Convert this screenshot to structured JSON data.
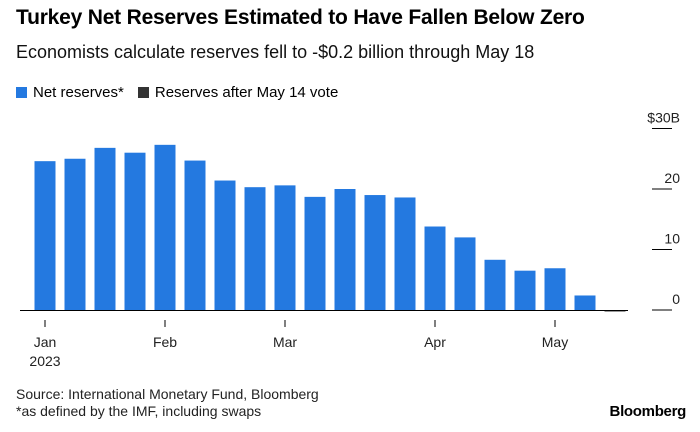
{
  "header": {
    "title": "Turkey Net Reserves Estimated to Have Fallen Below Zero",
    "subtitle": "Economists calculate reserves fell to -$0.2 billion through May 18"
  },
  "legend": {
    "items": [
      {
        "label": "Net reserves*",
        "color": "#2479e0"
      },
      {
        "label": "Reserves after May 14 vote",
        "color": "#333333"
      }
    ]
  },
  "chart_data": {
    "type": "bar",
    "title": "Turkey Net Reserves Estimated to Have Fallen Below Zero",
    "subtitle": "Economists calculate reserves fell to -$0.2 billion through May 18",
    "xlabel": "",
    "ylabel": "",
    "ylim": [
      -1,
      30
    ],
    "y_ticks": [
      {
        "value": 30,
        "label": "$30B"
      },
      {
        "value": 20,
        "label": "20"
      },
      {
        "value": 10,
        "label": "10"
      },
      {
        "value": 0,
        "label": "0"
      }
    ],
    "x_ticks": [
      {
        "index": 0,
        "label": "Jan",
        "sublabel": "2023"
      },
      {
        "index": 4,
        "label": "Feb",
        "sublabel": ""
      },
      {
        "index": 8,
        "label": "Mar",
        "sublabel": ""
      },
      {
        "index": 13,
        "label": "Apr",
        "sublabel": ""
      },
      {
        "index": 17,
        "label": "May",
        "sublabel": ""
      }
    ],
    "grid": false,
    "legend_position": "top-left",
    "series": [
      {
        "name": "Net reserves*",
        "color": "#2479e0",
        "values": [
          24.6,
          25.0,
          26.8,
          26.0,
          27.3,
          24.7,
          21.4,
          20.3,
          20.6,
          18.7,
          20.0,
          19.0,
          18.6,
          13.8,
          12.0,
          8.3,
          6.5,
          6.9,
          2.4,
          null
        ]
      },
      {
        "name": "Reserves after May 14 vote",
        "color": "#333333",
        "values": [
          null,
          null,
          null,
          null,
          null,
          null,
          null,
          null,
          null,
          null,
          null,
          null,
          null,
          null,
          null,
          null,
          null,
          null,
          null,
          -0.2
        ]
      }
    ]
  },
  "footer": {
    "source": "Source: International Monetary Fund, Bloomberg",
    "footnote": "*as defined by the IMF, including swaps",
    "brand": "Bloomberg"
  }
}
